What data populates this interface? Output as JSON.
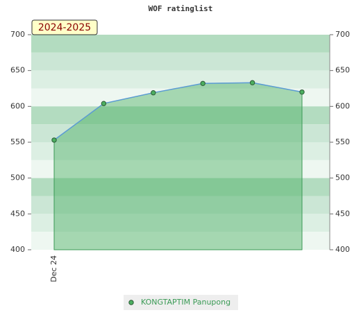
{
  "chart_data": {
    "type": "area",
    "title": "WOF ratinglist",
    "annotation": "2024-2025",
    "categories": [
      "Dec 24",
      null,
      null,
      null,
      null,
      null
    ],
    "series": [
      {
        "name": "KONGTAPTIM Panupong",
        "color": "#3a9a55",
        "values": [
          553,
          604,
          619,
          632,
          633,
          620
        ]
      }
    ],
    "ylim": [
      400,
      700
    ],
    "yticks": [
      400,
      450,
      500,
      550,
      600,
      650,
      700
    ],
    "y2lim": [
      400,
      700
    ],
    "y2ticks": [
      400,
      450,
      500,
      550,
      600,
      650,
      700
    ],
    "legend": "bottom"
  }
}
